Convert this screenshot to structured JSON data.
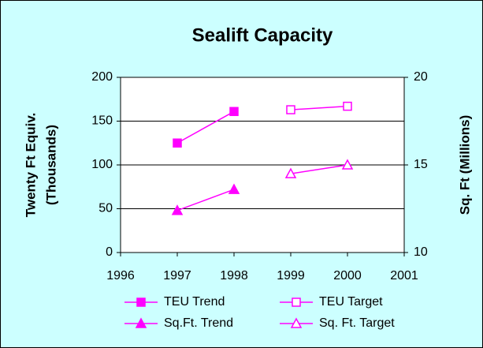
{
  "chart_data": {
    "type": "line",
    "title": "Sealift Capacity",
    "ylabel": [
      "Twenty Ft Equiv.",
      "(Thousands)"
    ],
    "y2label": "Sq. Ft (Millions)",
    "xlim": [
      1996,
      2001
    ],
    "xticks": [
      1996,
      1997,
      1998,
      1999,
      2000,
      2001
    ],
    "ylim": [
      0,
      200
    ],
    "yticks": [
      0,
      50,
      100,
      150,
      200
    ],
    "y2lim": [
      10,
      20
    ],
    "y2ticks": [
      10,
      15,
      20
    ],
    "grid": true,
    "series": [
      {
        "name": "TEU Trend",
        "color": "#ff00ff",
        "marker": "square",
        "filled": true,
        "x": [
          1997,
          1998
        ],
        "values": [
          125,
          161
        ]
      },
      {
        "name": "TEU Target",
        "color": "#ff00ff",
        "marker": "square",
        "filled": false,
        "x": [
          1999,
          2000
        ],
        "values": [
          163,
          167
        ]
      },
      {
        "name": "Sq.Ft. Trend",
        "color": "#ff00ff",
        "marker": "triangle",
        "filled": true,
        "axis": "y2",
        "x": [
          1997,
          1998
        ],
        "values": [
          12.4,
          13.6
        ]
      },
      {
        "name": "Sq. Ft. Target",
        "color": "#ff00ff",
        "marker": "triangle",
        "filled": false,
        "axis": "y2",
        "x": [
          1999,
          2000
        ],
        "values": [
          14.5,
          15.0
        ]
      }
    ]
  }
}
